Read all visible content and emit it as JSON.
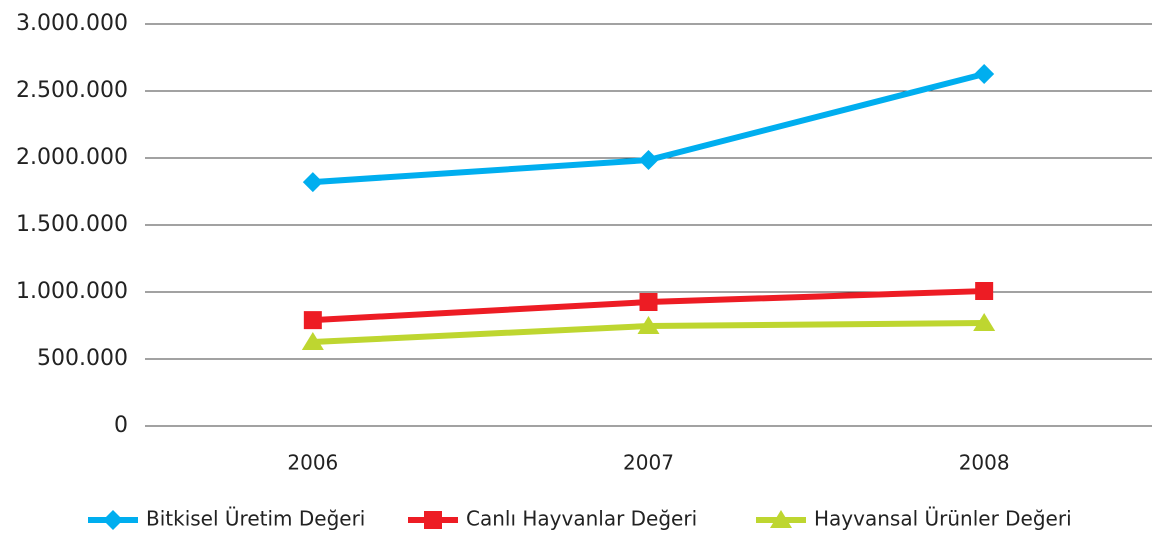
{
  "chart_data": {
    "type": "line",
    "categories": [
      "2006",
      "2007",
      "2008"
    ],
    "series": [
      {
        "name": "Bitkisel Üretim Değeri",
        "color": "#00aeef",
        "marker": "diamond",
        "values": [
          1820000,
          1985000,
          2627000
        ]
      },
      {
        "name": "Canlı Hayvanlar Değeri",
        "color": "#ed1c24",
        "marker": "square",
        "values": [
          790000,
          925000,
          1007000
        ]
      },
      {
        "name": "Hayvansal Ürünler Değeri",
        "color": "#bed630",
        "marker": "triangle",
        "values": [
          627000,
          746000,
          769000
        ]
      }
    ],
    "ylim": [
      0,
      3000000
    ],
    "yticks": [
      0,
      {
        "value": 500000,
        "label": "500.000"
      },
      {
        "value": 1000000,
        "label": "1.000.000"
      },
      {
        "value": 1500000,
        "label": "1.500.000"
      },
      {
        "value": 2000000,
        "label": "2.000.000"
      },
      {
        "value": 2500000,
        "label": "2.500.000"
      },
      {
        "value": 3000000,
        "label": "3.000.000"
      }
    ],
    "grid": true,
    "legend": "bottom"
  }
}
